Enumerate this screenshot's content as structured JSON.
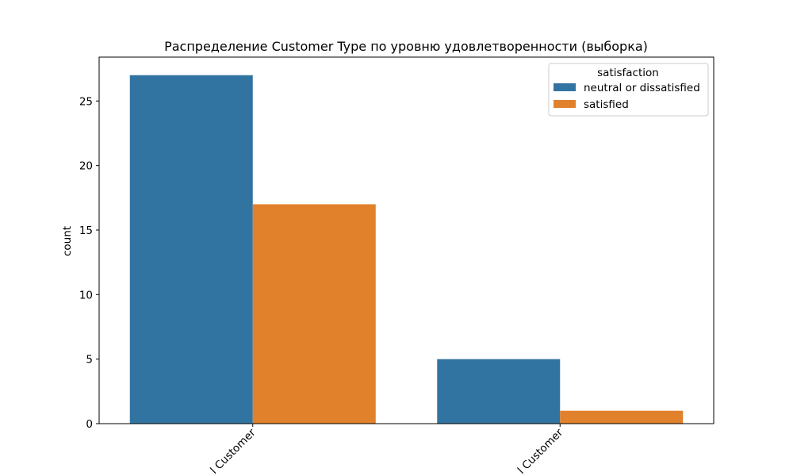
{
  "chart_data": {
    "type": "bar",
    "title": "Распределение Customer Type по уровню удовлетворенности (выборка)",
    "xlabel": "",
    "ylabel": "count",
    "categories": [
      "Loyal Customer",
      "disloyal Customer"
    ],
    "category_labels_visible": [
      "l Customer",
      "l Customer"
    ],
    "ylim": [
      0,
      28.4
    ],
    "yticks": [
      0,
      5,
      10,
      15,
      20,
      25
    ],
    "grid": false,
    "legend": {
      "title": "satisfaction",
      "placement": "top-right"
    },
    "series": [
      {
        "name": "neutral or dissatisfied",
        "color": "#3274a1",
        "values": [
          27,
          5
        ]
      },
      {
        "name": "satisfied",
        "color": "#e1812c",
        "values": [
          17,
          1
        ]
      }
    ]
  }
}
